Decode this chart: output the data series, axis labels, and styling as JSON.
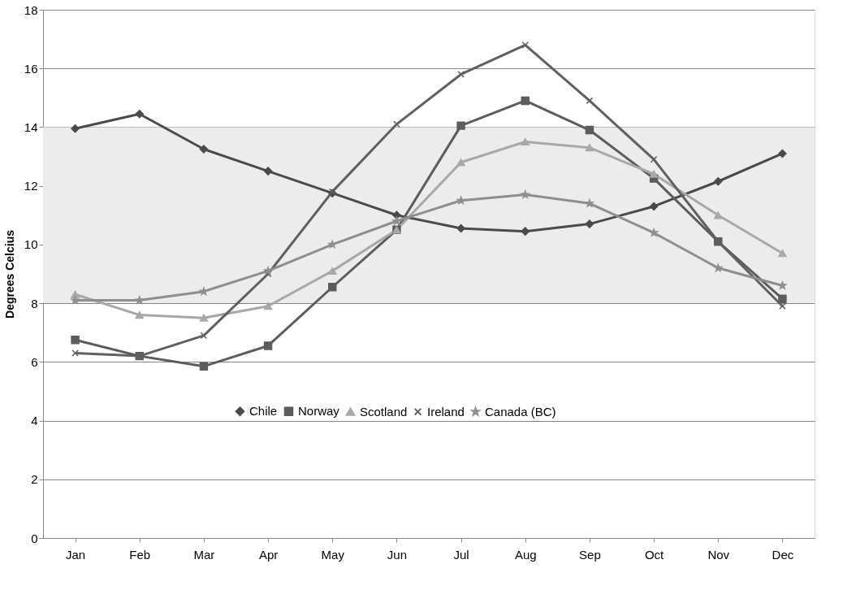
{
  "chart_data": {
    "type": "line",
    "ylabel": "Degrees Celcius",
    "categories": [
      "Jan",
      "Feb",
      "Mar",
      "Apr",
      "May",
      "Jun",
      "Jul",
      "Aug",
      "Sep",
      "Oct",
      "Nov",
      "Dec"
    ],
    "series": [
      {
        "name": "Chile",
        "color": "#4a4a4a",
        "marker": "diamond",
        "values": [
          13.95,
          14.45,
          13.25,
          12.5,
          11.75,
          11.0,
          10.55,
          10.45,
          10.7,
          11.3,
          12.15,
          13.1
        ]
      },
      {
        "name": "Norway",
        "color": "#5c5c5c",
        "marker": "square",
        "values": [
          6.75,
          6.2,
          5.85,
          6.55,
          8.55,
          10.5,
          14.05,
          14.9,
          13.9,
          12.25,
          10.1,
          8.15
        ]
      },
      {
        "name": "Scotland",
        "color": "#a8a8a8",
        "marker": "triangle",
        "values": [
          8.3,
          7.6,
          7.5,
          7.9,
          9.1,
          10.5,
          12.8,
          13.5,
          13.3,
          12.4,
          11.0,
          9.7
        ]
      },
      {
        "name": "Ireland",
        "color": "#606060",
        "marker": "cross",
        "values": [
          6.3,
          6.2,
          6.9,
          9.0,
          11.8,
          14.1,
          15.8,
          16.8,
          14.9,
          12.9,
          10.1,
          7.9
        ]
      },
      {
        "name": "Canada (BC)",
        "color": "#8e8e8e",
        "marker": "star",
        "values": [
          8.1,
          8.1,
          8.4,
          9.1,
          10.0,
          10.8,
          11.5,
          11.7,
          11.4,
          10.4,
          9.2,
          8.6
        ]
      }
    ],
    "ylim": [
      0,
      18
    ],
    "yticks": [
      0,
      2,
      4,
      6,
      8,
      10,
      12,
      14,
      16,
      18
    ],
    "grid": "y",
    "legend": "bottom",
    "bands": [
      {
        "axis": "y",
        "from": 8,
        "to": 14,
        "color": "#ececec"
      }
    ]
  }
}
